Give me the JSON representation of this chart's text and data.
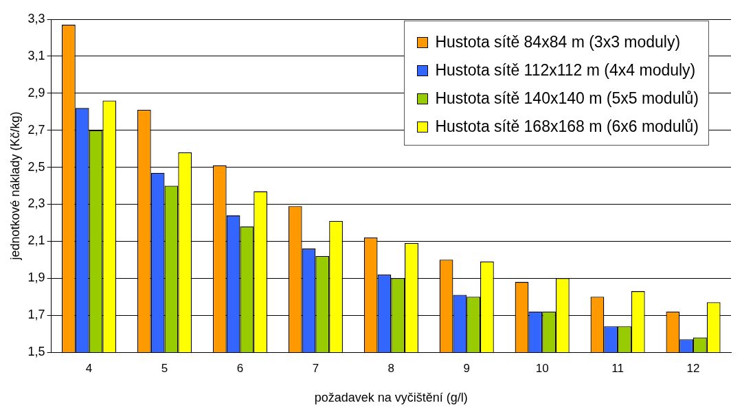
{
  "chart_data": {
    "type": "bar",
    "xlabel": "požadavek na vyčištění (g/l)",
    "ylabel": "jednotkové náklady (Kč/kg)",
    "categories": [
      "4",
      "5",
      "6",
      "7",
      "8",
      "9",
      "10",
      "11",
      "12"
    ],
    "series": [
      {
        "name": "Hustota sítě 84x84 m (3x3 moduly)",
        "color": "#ff9900",
        "values": [
          3.27,
          2.81,
          2.51,
          2.29,
          2.12,
          2.0,
          1.88,
          1.8,
          1.72
        ]
      },
      {
        "name": "Hustota sítě 112x112 m (4x4 moduly)",
        "color": "#3366ff",
        "values": [
          2.82,
          2.47,
          2.24,
          2.06,
          1.92,
          1.81,
          1.72,
          1.64,
          1.57
        ]
      },
      {
        "name": "Hustota sítě 140x140 m (5x5 modulů)",
        "color": "#99cc00",
        "values": [
          2.7,
          2.4,
          2.18,
          2.02,
          1.9,
          1.8,
          1.72,
          1.64,
          1.58
        ]
      },
      {
        "name": "Hustota sítě 168x168 m (6x6 modulů)",
        "color": "#ffff00",
        "values": [
          2.86,
          2.58,
          2.37,
          2.21,
          2.09,
          1.99,
          1.9,
          1.83,
          1.77
        ]
      }
    ],
    "ylim": [
      1.5,
      3.3
    ],
    "yticks": [
      {
        "value": 1.5,
        "label": "1,5"
      },
      {
        "value": 1.7,
        "label": "1,7"
      },
      {
        "value": 1.9,
        "label": "1,9"
      },
      {
        "value": 2.1,
        "label": "2,1"
      },
      {
        "value": 2.3,
        "label": "2,3"
      },
      {
        "value": 2.5,
        "label": "2,5"
      },
      {
        "value": 2.7,
        "label": "2,7"
      },
      {
        "value": 2.9,
        "label": "2,9"
      },
      {
        "value": 3.1,
        "label": "3,1"
      },
      {
        "value": 3.3,
        "label": "3,3"
      }
    ],
    "grid": "y",
    "legend": "top right"
  }
}
